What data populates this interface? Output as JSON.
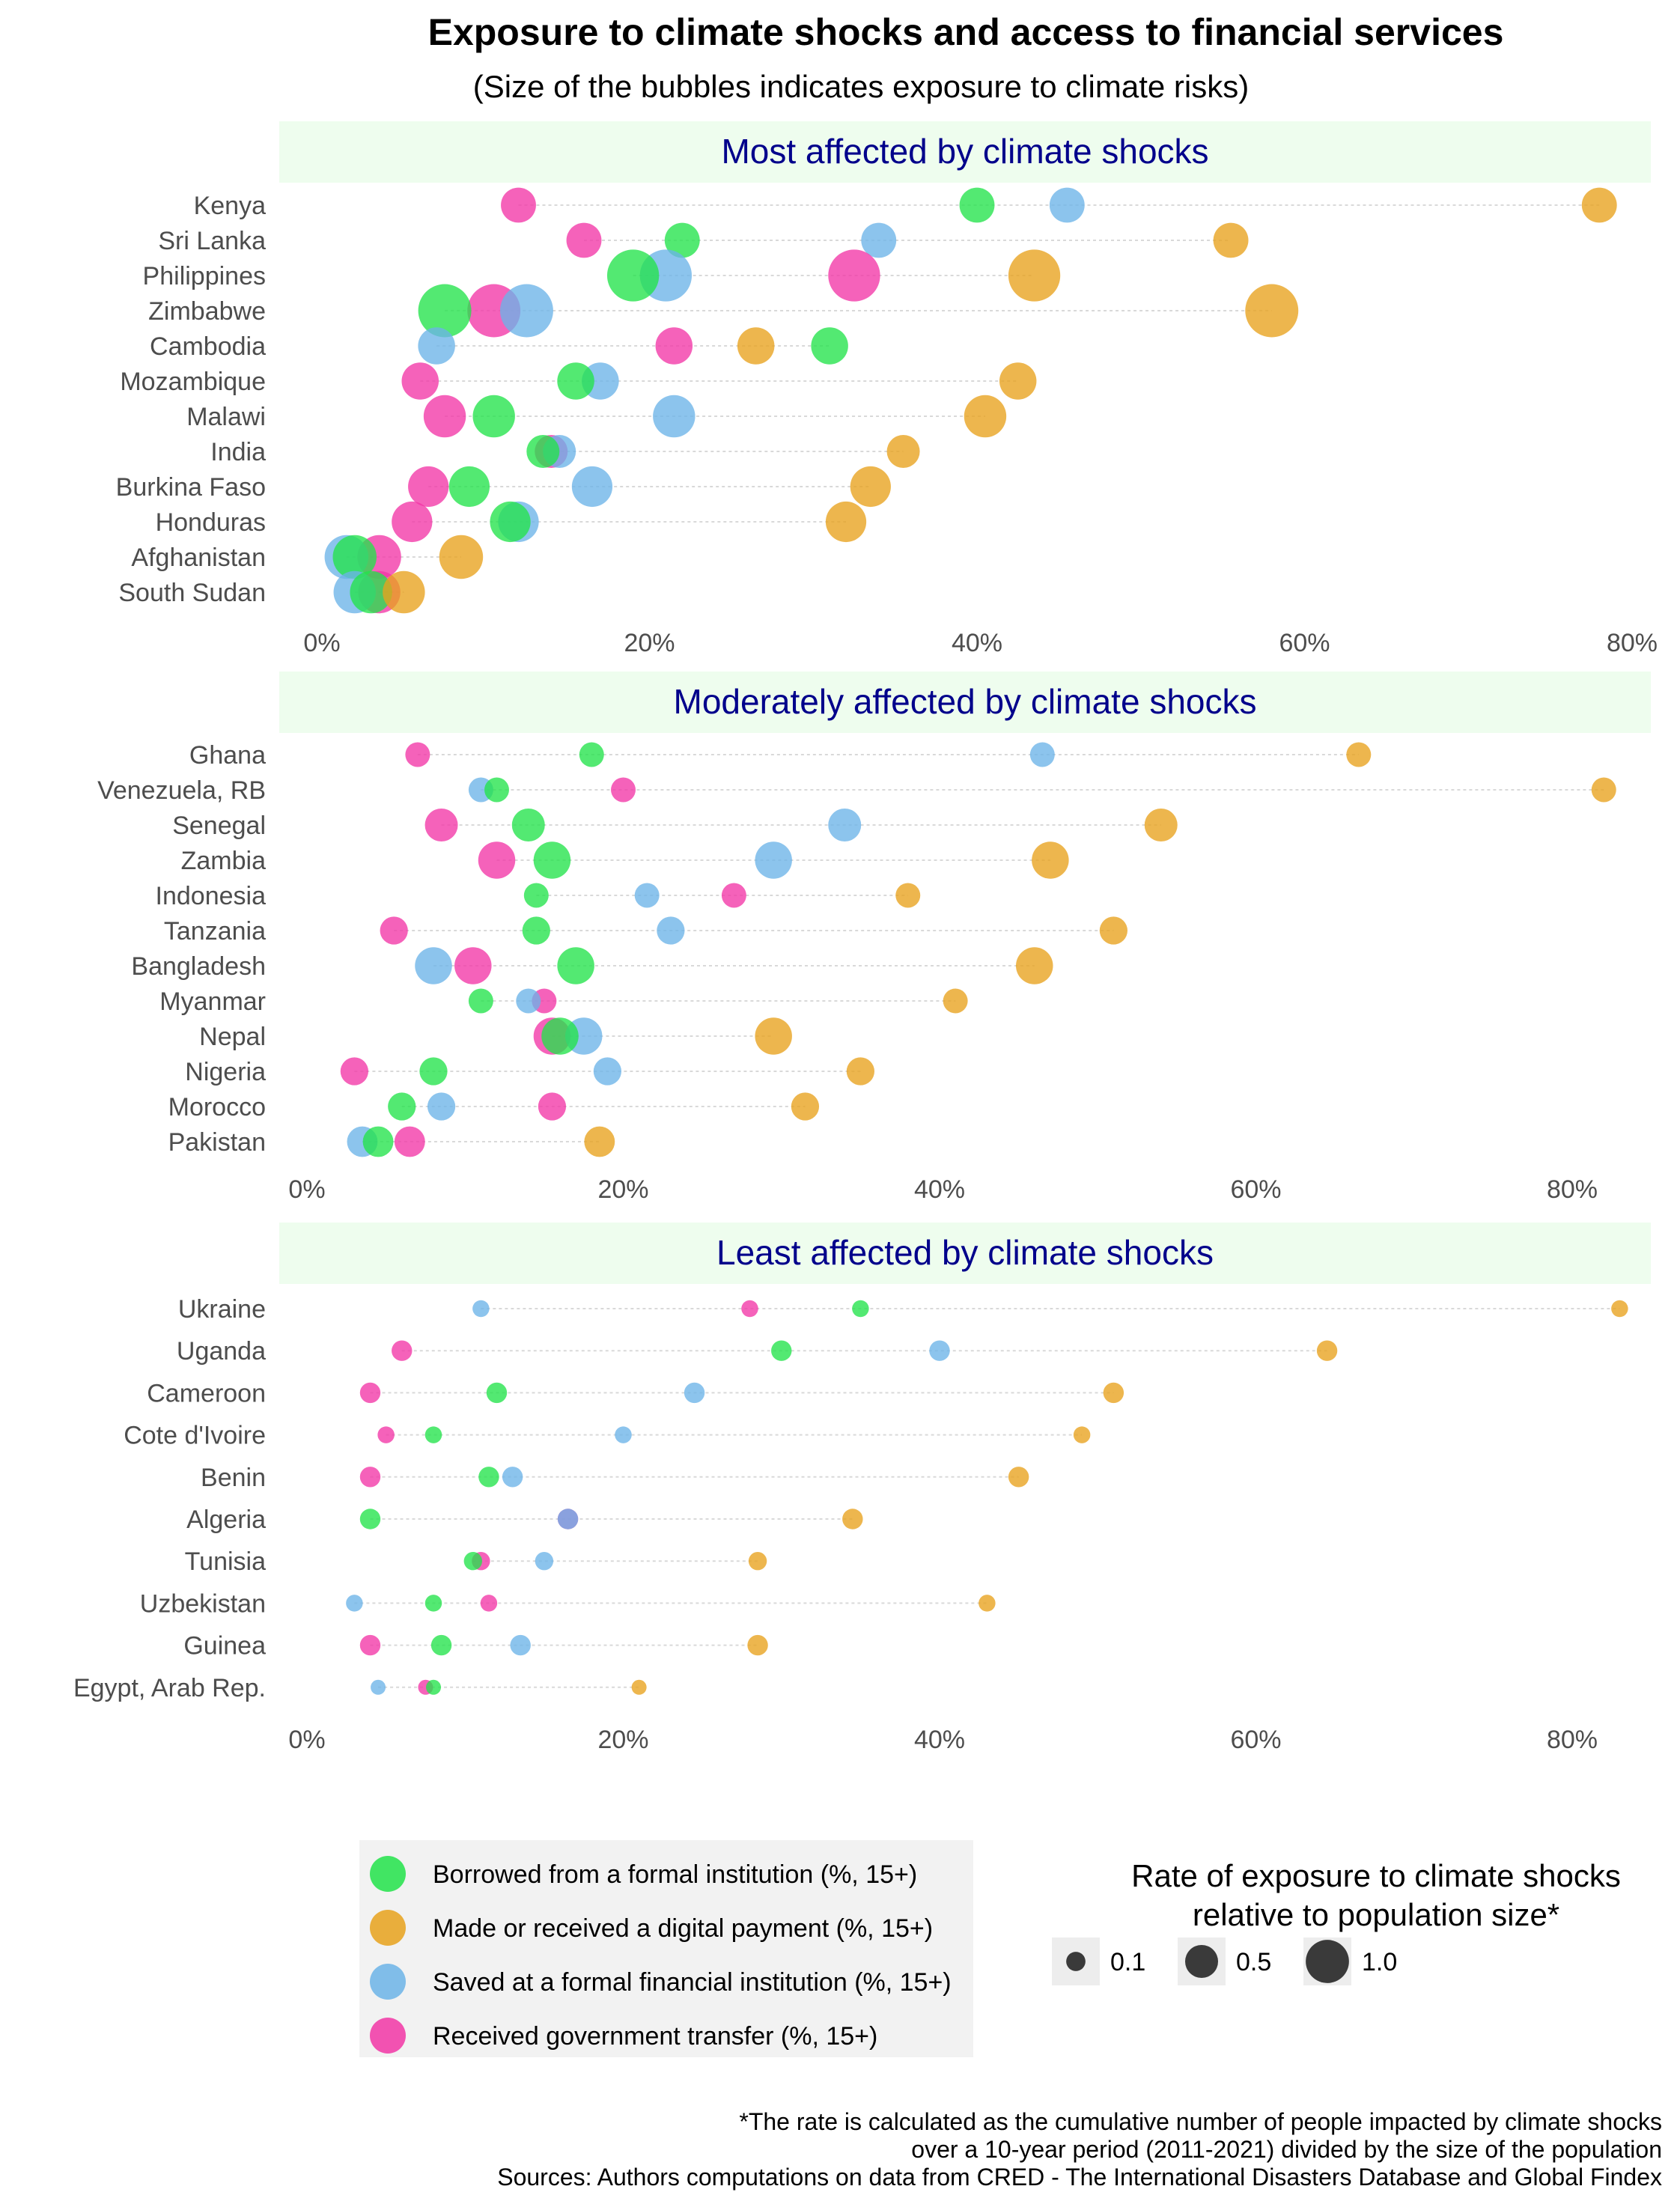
{
  "title": "Exposure to climate shocks and access to financial services",
  "subtitle": "(Size of the bubbles indicates exposure to climate risks)",
  "footnote": [
    "*The rate is calculated as the cumulative number of people impacted by climate shocks",
    "over a 10-year period (2011-2021) divided by the size of the population",
    "Sources: Authors computations on data from CRED - The International Disasters Database and Global Findex"
  ],
  "legend": {
    "series_title": "",
    "size_title_lines": [
      "Rate of exposure to climate shocks",
      "relative to population size*"
    ],
    "size_items": [
      {
        "label": "0.1",
        "value": 0.1
      },
      {
        "label": "0.5",
        "value": 0.5
      },
      {
        "label": "1.0",
        "value": 1.0
      }
    ]
  },
  "chart_data": {
    "type": "scatter",
    "x_ticks": [
      "0%",
      "20%",
      "40%",
      "60%",
      "80%"
    ],
    "x_tick_values": [
      0,
      20,
      40,
      60,
      80
    ],
    "series": [
      {
        "key": "borrowed",
        "name": "Borrowed from a formal institution (%, 15+)",
        "color": "#22e34a"
      },
      {
        "key": "digital",
        "name": "Made or received a digital payment (%, 15+)",
        "color": "#e8a21c"
      },
      {
        "key": "saved",
        "name": "Saved at a formal financial institution (%, 15+)",
        "color": "#6cb4e8"
      },
      {
        "key": "transfer",
        "name": "Received government transfer (%, 15+)",
        "color": "#f236a6"
      }
    ],
    "panels": [
      {
        "title": "Most affected by climate shocks",
        "xlim": [
          -1,
          81
        ],
        "rows": [
          {
            "country": "Kenya",
            "exposure": 0.3,
            "borrowed": 40,
            "digital": 78,
            "saved": 45.5,
            "transfer": 12
          },
          {
            "country": "Sri Lanka",
            "exposure": 0.3,
            "borrowed": 22,
            "digital": 55.5,
            "saved": 34,
            "transfer": 16
          },
          {
            "country": "Philippines",
            "exposure": 0.85,
            "borrowed": 19,
            "digital": 43.5,
            "saved": 21,
            "transfer": 32.5
          },
          {
            "country": "Zimbabwe",
            "exposure": 0.9,
            "borrowed": 7.5,
            "digital": 58,
            "saved": 12.5,
            "transfer": 10.5
          },
          {
            "country": "Cambodia",
            "exposure": 0.35,
            "borrowed": 31,
            "digital": 26.5,
            "saved": 7,
            "transfer": 21.5
          },
          {
            "country": "Mozambique",
            "exposure": 0.35,
            "borrowed": 15.5,
            "digital": 42.5,
            "saved": 17,
            "transfer": 6
          },
          {
            "country": "Malawi",
            "exposure": 0.5,
            "borrowed": 10.5,
            "digital": 40.5,
            "saved": 21.5,
            "transfer": 7.5
          },
          {
            "country": "India",
            "exposure": 0.25,
            "borrowed": 13.5,
            "digital": 35.5,
            "saved": 14.5,
            "transfer": 14
          },
          {
            "country": "Burkina Faso",
            "exposure": 0.45,
            "borrowed": 9,
            "digital": 33.5,
            "saved": 16.5,
            "transfer": 6.5
          },
          {
            "country": "Honduras",
            "exposure": 0.45,
            "borrowed": 11.5,
            "digital": 32,
            "saved": 12,
            "transfer": 5.5
          },
          {
            "country": "Afghanistan",
            "exposure": 0.55,
            "borrowed": 2,
            "digital": 8.5,
            "saved": 1.5,
            "transfer": 3.5
          },
          {
            "country": "South Sudan",
            "exposure": 0.5,
            "borrowed": 3,
            "digital": 5,
            "saved": 2,
            "transfer": 3.5
          }
        ]
      },
      {
        "title": "Moderately affected by climate shocks",
        "xlim": [
          -1,
          83
        ],
        "rows": [
          {
            "country": "Ghana",
            "exposure": 0.1,
            "borrowed": 18,
            "digital": 66.5,
            "saved": 46.5,
            "transfer": 7
          },
          {
            "country": "Venezuela, RB",
            "exposure": 0.1,
            "borrowed": 12,
            "digital": 82,
            "saved": 11,
            "transfer": 20
          },
          {
            "country": "Senegal",
            "exposure": 0.25,
            "borrowed": 14,
            "digital": 54,
            "saved": 34,
            "transfer": 8.5
          },
          {
            "country": "Zambia",
            "exposure": 0.35,
            "borrowed": 15.5,
            "digital": 47,
            "saved": 29.5,
            "transfer": 12
          },
          {
            "country": "Indonesia",
            "exposure": 0.1,
            "borrowed": 14.5,
            "digital": 38,
            "saved": 21.5,
            "transfer": 27
          },
          {
            "country": "Tanzania",
            "exposure": 0.15,
            "borrowed": 14.5,
            "digital": 51,
            "saved": 23,
            "transfer": 5.5
          },
          {
            "country": "Bangladesh",
            "exposure": 0.35,
            "borrowed": 17,
            "digital": 46,
            "saved": 8,
            "transfer": 10.5
          },
          {
            "country": "Myanmar",
            "exposure": 0.1,
            "borrowed": 11,
            "digital": 41,
            "saved": 14,
            "transfer": 15
          },
          {
            "country": "Nepal",
            "exposure": 0.35,
            "borrowed": 16,
            "digital": 29.5,
            "saved": 17.5,
            "transfer": 15.5
          },
          {
            "country": "Nigeria",
            "exposure": 0.15,
            "borrowed": 8,
            "digital": 35,
            "saved": 19,
            "transfer": 3
          },
          {
            "country": "Morocco",
            "exposure": 0.15,
            "borrowed": 6,
            "digital": 31.5,
            "saved": 8.5,
            "transfer": 15.5
          },
          {
            "country": "Pakistan",
            "exposure": 0.2,
            "borrowed": 4.5,
            "digital": 18.5,
            "saved": 3.5,
            "transfer": 6.5
          }
        ]
      },
      {
        "title": "Least affected by climate shocks",
        "xlim": [
          -1,
          83
        ],
        "rows": [
          {
            "country": "Ukraine",
            "exposure": 0.02,
            "borrowed": 35,
            "digital": 83,
            "saved": 11,
            "transfer": 28
          },
          {
            "country": "Uganda",
            "exposure": 0.05,
            "borrowed": 30,
            "digital": 64.5,
            "saved": 40,
            "transfer": 6
          },
          {
            "country": "Cameroon",
            "exposure": 0.05,
            "borrowed": 12,
            "digital": 51,
            "saved": 24.5,
            "transfer": 4
          },
          {
            "country": "Cote d'Ivoire",
            "exposure": 0.02,
            "borrowed": 8,
            "digital": 49,
            "saved": 20,
            "transfer": 5
          },
          {
            "country": "Benin",
            "exposure": 0.05,
            "borrowed": 11.5,
            "digital": 45,
            "saved": 13,
            "transfer": 4
          },
          {
            "country": "Algeria",
            "exposure": 0.05,
            "borrowed": 4,
            "digital": 34.5,
            "saved": 16.5,
            "transfer": 16.5
          },
          {
            "country": "Tunisia",
            "exposure": 0.03,
            "borrowed": 10.5,
            "digital": 28.5,
            "saved": 15,
            "transfer": 11
          },
          {
            "country": "Uzbekistan",
            "exposure": 0.02,
            "borrowed": 8,
            "digital": 43,
            "saved": 3,
            "transfer": 11.5
          },
          {
            "country": "Guinea",
            "exposure": 0.05,
            "borrowed": 8.5,
            "digital": 28.5,
            "saved": 13.5,
            "transfer": 4
          },
          {
            "country": "Egypt, Arab Rep.",
            "exposure": 0.01,
            "borrowed": 8,
            "digital": 21,
            "saved": 4.5,
            "transfer": 7.5
          }
        ]
      }
    ]
  }
}
